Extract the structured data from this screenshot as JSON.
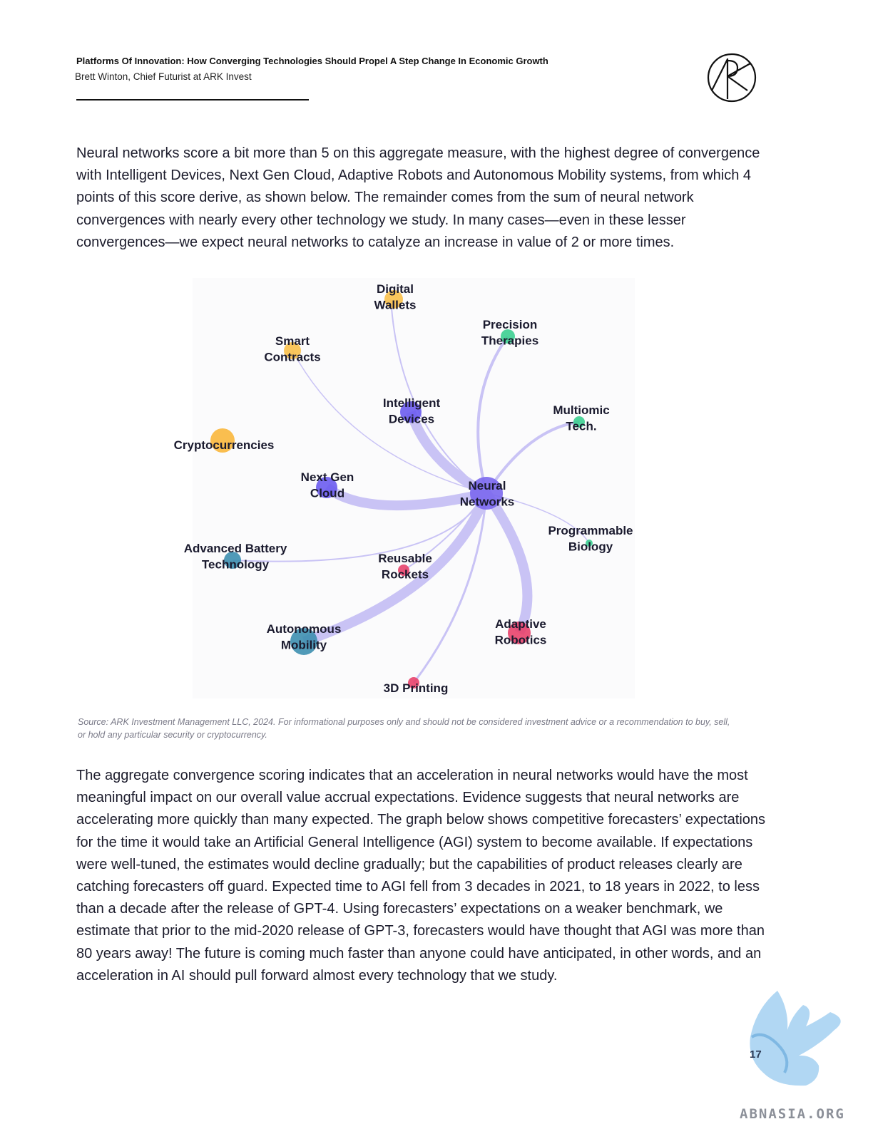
{
  "header": {
    "title": "Platforms Of Innovation: How Converging Technologies Should Propel A Step Change In Economic Growth",
    "author": "Brett Winton, Chief Futurist at ARK Invest",
    "logo_icon": "ark-logo-icon"
  },
  "paragraphs": {
    "intro": "Neural networks score a bit more than 5 on this aggregate measure, with the highest degree of convergence with Intelligent Devices, Next Gen Cloud, Adaptive Robots and Autonomous Mobility systems, from which 4 points of this score derive, as shown below. The remainder comes from the sum of neural network convergences with nearly every other technology we study. In many cases—even in these lesser convergences—we expect neural networks to catalyze an increase in value of 2 or more times.",
    "conclusion": "The aggregate convergence scoring indicates that an acceleration in neural networks would have the most meaningful impact on our overall value accrual expectations. Evidence suggests that neural networks are accelerating more quickly than many expected. The graph below shows competitive forecasters’ expectations for the time it would take an Artificial General Intelligence (AGI) system to become available. If expectations were well-tuned, the estimates would decline gradually; but the capabilities of product releases clearly are catching forecasters off guard. Expected time to AGI fell from 3 decades in 2021, to 18 years in 2022, to less than a decade after the release of GPT-4. Using forecasters’ expectations on a weaker benchmark, we estimate that prior to the mid-2020 release of GPT-3, forecasters would have thought that AGI was more than 80 years away! The future is coming much faster than anyone could have anticipated, in other words, and an acceleration in AI should pull forward almost every technology that we study."
  },
  "network": {
    "center": {
      "label_lines": [
        "Neural",
        "Networks"
      ],
      "color": "#7b68ee"
    },
    "edge_color": "#c9c3f5",
    "nodes": [
      {
        "id": "digital-wallets",
        "label_lines": [
          "Digital",
          "Wallets"
        ],
        "color": "#f9c04a"
      },
      {
        "id": "smart-contracts",
        "label_lines": [
          "Smart",
          "Contracts"
        ],
        "color": "#f9c04a"
      },
      {
        "id": "cryptocurrencies",
        "label_lines": [
          "Cryptocurrencies"
        ],
        "color": "#f9b73c"
      },
      {
        "id": "precision-therapies",
        "label_lines": [
          "Precision",
          "Therapies"
        ],
        "color": "#3ccf91"
      },
      {
        "id": "intelligent-devices",
        "label_lines": [
          "Intelligent",
          "Devices"
        ],
        "color": "#6b5cf0"
      },
      {
        "id": "multiomic-tech",
        "label_lines": [
          "Multiomic",
          "Tech."
        ],
        "color": "#3ccf91"
      },
      {
        "id": "next-gen-cloud",
        "label_lines": [
          "Next Gen",
          "Cloud"
        ],
        "color": "#6b5cf0"
      },
      {
        "id": "programmable-biology",
        "label_lines": [
          "Programmable",
          "Biology"
        ],
        "color": "#3ccf91"
      },
      {
        "id": "advanced-battery-technology",
        "label_lines": [
          "Advanced Battery",
          "Technology"
        ],
        "color": "#3d8fb0"
      },
      {
        "id": "reusable-rockets",
        "label_lines": [
          "Reusable",
          "Rockets"
        ],
        "color": "#e8436b"
      },
      {
        "id": "autonomous-mobility",
        "label_lines": [
          "Autonomous",
          "Mobility"
        ],
        "color": "#3d8fb0"
      },
      {
        "id": "adaptive-robotics",
        "label_lines": [
          "Adaptive",
          "Robotics"
        ],
        "color": "#e8436b"
      },
      {
        "id": "3d-printing",
        "label_lines": [
          "3D Printing"
        ],
        "color": "#e8436b"
      }
    ]
  },
  "source_note": "Source: ARK Investment Management LLC, 2024. For informational purposes only and should not be considered investment advice or a recommendation to buy, sell, or hold any particular security or cryptocurrency.",
  "page_number": "17",
  "watermark": {
    "text": "ABNASIA.ORG",
    "icon": "griffin-icon"
  }
}
